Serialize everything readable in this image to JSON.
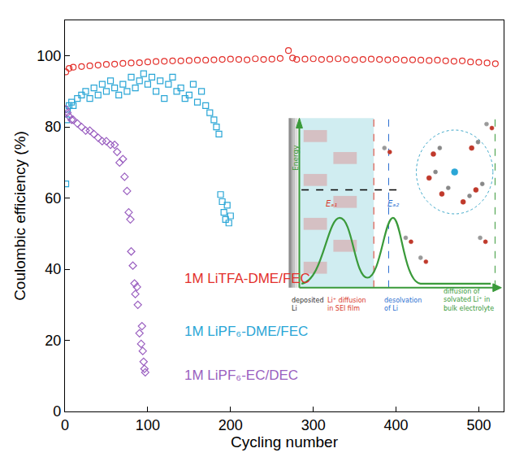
{
  "chart_data": {
    "type": "scatter",
    "x_label": "Cycling number",
    "y_label": "Coulombic efficiency (%)",
    "xlim": [
      0,
      530
    ],
    "ylim": [
      0,
      110
    ],
    "xticks": [
      0,
      100,
      200,
      300,
      400,
      500
    ],
    "yticks": [
      0,
      20,
      40,
      60,
      80,
      100
    ],
    "grid": false,
    "series": [
      {
        "name": "1M LiTFA-DME/FEC",
        "color": "#e3302b",
        "marker": "circle-open",
        "x": [
          1,
          5,
          10,
          20,
          30,
          40,
          50,
          60,
          70,
          80,
          90,
          100,
          110,
          120,
          130,
          140,
          150,
          160,
          170,
          180,
          190,
          200,
          210,
          220,
          230,
          240,
          250,
          260,
          270,
          275,
          280,
          290,
          300,
          310,
          320,
          330,
          340,
          350,
          360,
          370,
          380,
          390,
          400,
          410,
          420,
          430,
          440,
          450,
          460,
          470,
          480,
          490,
          500,
          510,
          520
        ],
        "values": [
          95.5,
          96.5,
          96.8,
          97.0,
          97.2,
          97.4,
          97.6,
          97.7,
          97.9,
          98.0,
          98.1,
          98.3,
          98.4,
          98.5,
          98.6,
          98.6,
          98.7,
          98.8,
          98.8,
          98.9,
          99.0,
          99.1,
          99.0,
          98.9,
          99.2,
          99.0,
          99.1,
          99.3,
          101.5,
          99.4,
          99.0,
          99.1,
          99.2,
          99.0,
          99.1,
          99.2,
          99.0,
          98.9,
          99.0,
          99.1,
          99.0,
          98.9,
          99.0,
          98.8,
          98.9,
          98.8,
          98.7,
          98.8,
          98.6,
          98.5,
          98.6,
          98.3,
          98.2,
          98.0,
          97.8
        ]
      },
      {
        "name": "1M LiPF₆-DME/FEC",
        "color": "#2aa6d6",
        "marker": "square-open",
        "x": [
          1,
          2,
          3,
          5,
          8,
          10,
          15,
          20,
          25,
          30,
          35,
          40,
          45,
          50,
          55,
          60,
          65,
          70,
          75,
          80,
          85,
          90,
          95,
          100,
          105,
          110,
          115,
          120,
          125,
          130,
          135,
          140,
          145,
          150,
          155,
          160,
          165,
          170,
          175,
          180,
          183,
          186,
          188,
          190,
          192,
          194,
          196,
          198,
          200
        ],
        "values": [
          64,
          82,
          85,
          86,
          87,
          86,
          88,
          89,
          90,
          88,
          91,
          89,
          92,
          90,
          93,
          91,
          89,
          92,
          90,
          94,
          91,
          93,
          95,
          92,
          94,
          90,
          93,
          88,
          92,
          94,
          90,
          91,
          88,
          89,
          92,
          87,
          90,
          86,
          84,
          82,
          80,
          78,
          61,
          59,
          56,
          54,
          58,
          53,
          55
        ]
      },
      {
        "name": "1M LiPF₆-EC/DEC",
        "color": "#9a5fc0",
        "marker": "diamond-open",
        "x": [
          1,
          3,
          5,
          8,
          10,
          15,
          20,
          25,
          30,
          35,
          40,
          45,
          50,
          55,
          60,
          63,
          66,
          70,
          72,
          75,
          77,
          79,
          80,
          82,
          84,
          85,
          87,
          88,
          90,
          92,
          93,
          94,
          95,
          96,
          97
        ],
        "values": [
          85,
          84,
          83,
          82,
          82,
          81,
          80,
          79,
          79,
          78,
          77,
          76,
          76,
          75,
          75,
          73,
          70,
          71,
          66,
          62,
          56,
          54,
          45,
          41,
          36,
          33,
          35,
          30,
          22,
          19,
          24,
          17,
          14,
          12,
          11
        ]
      }
    ],
    "annotations": [
      {
        "text": "Energy",
        "color": "#3a9a3a"
      },
      {
        "text": "Eₐ₁",
        "color": "#d93a2b"
      },
      {
        "text": "Eₐ₂",
        "color": "#2c6fd1"
      },
      {
        "text": "deposited Li",
        "color": "#333333"
      },
      {
        "text": "Li⁺ diffusion in SEI film",
        "color": "#d93a2b"
      },
      {
        "text": "desolvation of Li",
        "color": "#2c6fd1"
      },
      {
        "text": "diffusion of solvated Li⁺ in bulk electrolyte",
        "color": "#3a9a3a"
      }
    ]
  }
}
